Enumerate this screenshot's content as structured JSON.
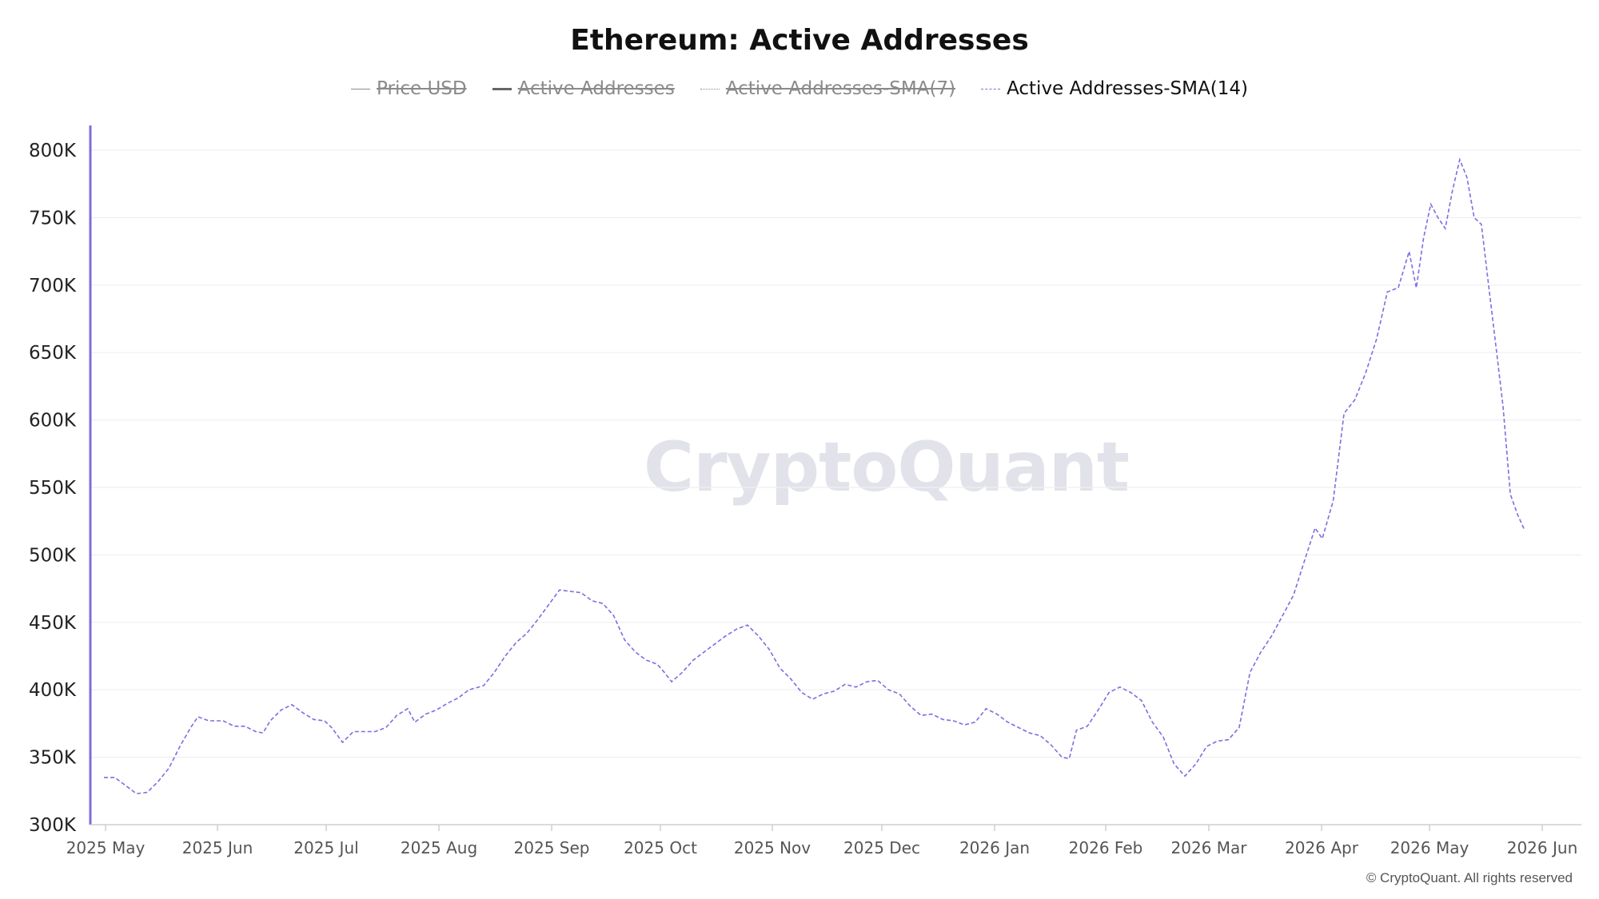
{
  "title": "Ethereum: Active Addresses",
  "watermark": "CryptoQuant",
  "copyright": "© CryptoQuant. All rights reserved",
  "legend": [
    {
      "label": "Price USD",
      "active": false,
      "style": "solid-thin",
      "color": "#8a8a8a"
    },
    {
      "label": "Active Addresses",
      "active": false,
      "style": "solid",
      "color": "#666666"
    },
    {
      "label": "Active Addresses-SMA(7)",
      "active": false,
      "style": "dotted",
      "color": "#8a8a8a"
    },
    {
      "label": "Active Addresses-SMA(14)",
      "active": true,
      "style": "dashed",
      "color": "#7b6fe0"
    }
  ],
  "chart_data": {
    "type": "line",
    "title": "Ethereum: Active Addresses",
    "y_ticks": [
      "300K",
      "350K",
      "400K",
      "450K",
      "500K",
      "550K",
      "600K",
      "650K",
      "700K",
      "750K",
      "800K"
    ],
    "ylim": [
      300000,
      800000
    ],
    "x_ticks": [
      "2025 May",
      "2025 Jun",
      "2025 Jul",
      "2025 Aug",
      "2025 Sep",
      "2025 Oct",
      "2025 Nov",
      "2025 Dec",
      "2026 Jan",
      "2026 Feb",
      "2026 Mar",
      "2026 Apr",
      "2026 May",
      "2026 Jun"
    ],
    "xlim": [
      "2025-04-30",
      "2026-06-12"
    ],
    "grid": true,
    "legend_position": "top-center",
    "series": [
      {
        "name": "Active Addresses-SMA(14)",
        "color": "#7b6fe0",
        "style": "dashed",
        "points": [
          [
            "2025-04-30",
            335000
          ],
          [
            "2025-05-03",
            335000
          ],
          [
            "2025-05-06",
            329000
          ],
          [
            "2025-05-09",
            323000
          ],
          [
            "2025-05-12",
            324000
          ],
          [
            "2025-05-15",
            332000
          ],
          [
            "2025-05-18",
            342000
          ],
          [
            "2025-05-21",
            358000
          ],
          [
            "2025-05-24",
            372000
          ],
          [
            "2025-05-26",
            380000
          ],
          [
            "2025-05-29",
            377000
          ],
          [
            "2025-06-02",
            377000
          ],
          [
            "2025-06-05",
            373000
          ],
          [
            "2025-06-08",
            373000
          ],
          [
            "2025-06-11",
            369000
          ],
          [
            "2025-06-13",
            368000
          ],
          [
            "2025-06-15",
            377000
          ],
          [
            "2025-06-18",
            385000
          ],
          [
            "2025-06-21",
            389000
          ],
          [
            "2025-06-24",
            383000
          ],
          [
            "2025-06-27",
            378000
          ],
          [
            "2025-06-30",
            377000
          ],
          [
            "2025-07-02",
            372000
          ],
          [
            "2025-07-05",
            361000
          ],
          [
            "2025-07-08",
            369000
          ],
          [
            "2025-07-11",
            369000
          ],
          [
            "2025-07-14",
            369000
          ],
          [
            "2025-07-17",
            372000
          ],
          [
            "2025-07-20",
            381000
          ],
          [
            "2025-07-23",
            386000
          ],
          [
            "2025-07-25",
            376000
          ],
          [
            "2025-07-28",
            382000
          ],
          [
            "2025-07-31",
            385000
          ],
          [
            "2025-08-03",
            390000
          ],
          [
            "2025-08-06",
            394000
          ],
          [
            "2025-08-09",
            400000
          ],
          [
            "2025-08-13",
            403000
          ],
          [
            "2025-08-16",
            413000
          ],
          [
            "2025-08-19",
            425000
          ],
          [
            "2025-08-22",
            435000
          ],
          [
            "2025-08-25",
            442000
          ],
          [
            "2025-08-28",
            452000
          ],
          [
            "2025-08-31",
            463000
          ],
          [
            "2025-09-03",
            474000
          ],
          [
            "2025-09-06",
            473000
          ],
          [
            "2025-09-09",
            472000
          ],
          [
            "2025-09-12",
            466000
          ],
          [
            "2025-09-15",
            464000
          ],
          [
            "2025-09-18",
            455000
          ],
          [
            "2025-09-21",
            437000
          ],
          [
            "2025-09-24",
            428000
          ],
          [
            "2025-09-27",
            422000
          ],
          [
            "2025-09-30",
            419000
          ],
          [
            "2025-10-02",
            413000
          ],
          [
            "2025-10-04",
            406000
          ],
          [
            "2025-10-07",
            413000
          ],
          [
            "2025-10-10",
            422000
          ],
          [
            "2025-10-13",
            428000
          ],
          [
            "2025-10-16",
            434000
          ],
          [
            "2025-10-19",
            440000
          ],
          [
            "2025-10-22",
            445000
          ],
          [
            "2025-10-25",
            448000
          ],
          [
            "2025-10-28",
            440000
          ],
          [
            "2025-10-31",
            430000
          ],
          [
            "2025-11-03",
            416000
          ],
          [
            "2025-11-06",
            408000
          ],
          [
            "2025-11-09",
            398000
          ],
          [
            "2025-11-12",
            393000
          ],
          [
            "2025-11-15",
            397000
          ],
          [
            "2025-11-18",
            399000
          ],
          [
            "2025-11-21",
            404000
          ],
          [
            "2025-11-24",
            402000
          ],
          [
            "2025-11-27",
            406000
          ],
          [
            "2025-11-30",
            407000
          ],
          [
            "2025-12-03",
            400000
          ],
          [
            "2025-12-06",
            397000
          ],
          [
            "2025-12-09",
            388000
          ],
          [
            "2025-12-12",
            381000
          ],
          [
            "2025-12-15",
            382000
          ],
          [
            "2025-12-18",
            378000
          ],
          [
            "2025-12-21",
            377000
          ],
          [
            "2025-12-24",
            374000
          ],
          [
            "2025-12-27",
            376000
          ],
          [
            "2025-12-30",
            386000
          ],
          [
            "2026-01-02",
            382000
          ],
          [
            "2026-01-05",
            376000
          ],
          [
            "2026-01-08",
            372000
          ],
          [
            "2026-01-11",
            368000
          ],
          [
            "2026-01-14",
            366000
          ],
          [
            "2026-01-17",
            359000
          ],
          [
            "2026-01-20",
            350000
          ],
          [
            "2026-01-22",
            349000
          ],
          [
            "2026-01-24",
            370000
          ],
          [
            "2026-01-27",
            373000
          ],
          [
            "2026-01-30",
            385000
          ],
          [
            "2026-02-02",
            398000
          ],
          [
            "2026-02-05",
            402000
          ],
          [
            "2026-02-08",
            398000
          ],
          [
            "2026-02-11",
            392000
          ],
          [
            "2026-02-14",
            376000
          ],
          [
            "2026-02-17",
            365000
          ],
          [
            "2026-02-20",
            345000
          ],
          [
            "2026-02-23",
            336000
          ],
          [
            "2026-02-26",
            345000
          ],
          [
            "2026-03-01",
            358000
          ],
          [
            "2026-03-04",
            362000
          ],
          [
            "2026-03-07",
            363000
          ],
          [
            "2026-03-10",
            372000
          ],
          [
            "2026-03-13",
            413000
          ],
          [
            "2026-03-16",
            428000
          ],
          [
            "2026-03-19",
            440000
          ],
          [
            "2026-03-22",
            455000
          ],
          [
            "2026-03-25",
            470000
          ],
          [
            "2026-03-28",
            495000
          ],
          [
            "2026-03-31",
            520000
          ],
          [
            "2026-04-02",
            512000
          ],
          [
            "2026-04-05",
            540000
          ],
          [
            "2026-04-08",
            605000
          ],
          [
            "2026-04-11",
            615000
          ],
          [
            "2026-04-14",
            635000
          ],
          [
            "2026-04-17",
            660000
          ],
          [
            "2026-04-20",
            695000
          ],
          [
            "2026-04-23",
            698000
          ],
          [
            "2026-04-26",
            725000
          ],
          [
            "2026-04-28",
            698000
          ],
          [
            "2026-04-30",
            735000
          ],
          [
            "2026-05-02",
            760000
          ],
          [
            "2026-05-04",
            750000
          ],
          [
            "2026-05-06",
            742000
          ],
          [
            "2026-05-08",
            770000
          ],
          [
            "2026-05-10",
            793000
          ],
          [
            "2026-05-12",
            780000
          ],
          [
            "2026-05-14",
            750000
          ],
          [
            "2026-05-16",
            745000
          ],
          [
            "2026-05-18",
            700000
          ],
          [
            "2026-05-20",
            655000
          ],
          [
            "2026-05-22",
            610000
          ],
          [
            "2026-05-24",
            545000
          ],
          [
            "2026-05-26",
            530000
          ],
          [
            "2026-05-28",
            518000
          ]
        ]
      }
    ]
  }
}
